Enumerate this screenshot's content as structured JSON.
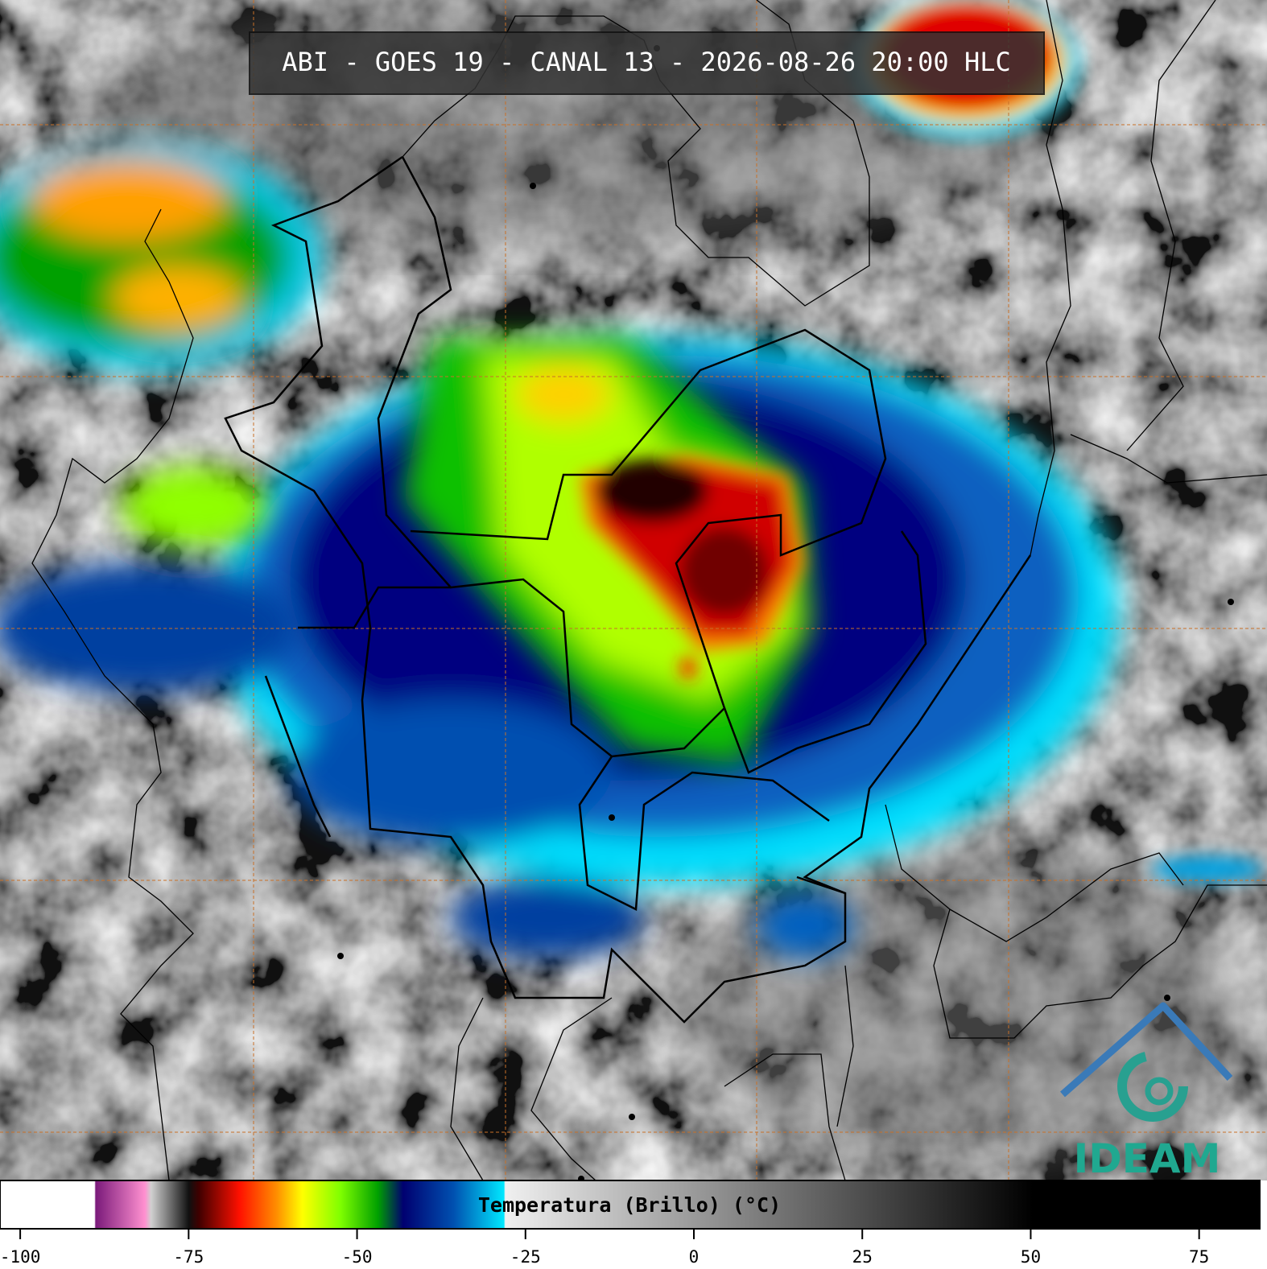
{
  "title": "ABI - GOES 19 - CANAL 13 - 2026-08-26 20:00 HLC",
  "logo": "IDEAM",
  "colorbar": {
    "label": "Temperatura (Brillo) (°C)",
    "lim": [
      -103,
      84
    ],
    "ticks": [
      -100,
      -75,
      -50,
      -25,
      0,
      25,
      50,
      75
    ]
  }
}
